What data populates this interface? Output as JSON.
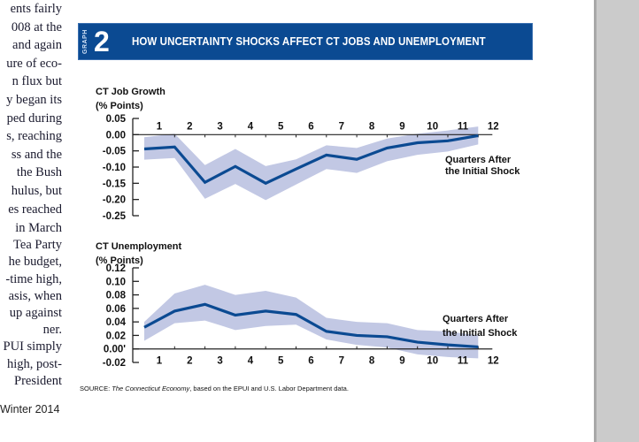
{
  "body_text": {
    "lines": [
      "ents fairly",
      "008 at the",
      "and again",
      "ure of eco-",
      "n flux but",
      "y began its",
      "ped during",
      "s, reaching",
      "ss and the",
      "the Bush",
      "hulus, but",
      "es reached",
      "",
      "in March",
      "Tea Party",
      "he budget,",
      "-time high,",
      "asis, when",
      "up against",
      "ner.",
      "PUI simply",
      "high, post-",
      "President"
    ],
    "footer": "Winter 2014"
  },
  "graph_header": {
    "tag": "GRAPH",
    "number": "2",
    "title": "HOW UNCERTAINTY SHOCKS AFFECT CT JOBS AND UNEMPLOYMENT",
    "color": "#0b4a92"
  },
  "source": {
    "prefix": "SOURCE: ",
    "italic": "The Connecticut Economy",
    "suffix": ", based on the EPUI and U.S. Labor Department data."
  },
  "chart_data": [
    {
      "type": "area",
      "title": "CT Job Growth",
      "ylabel": "(% Points)",
      "xlabel": "Quarters After the Initial Shock",
      "x": [
        1,
        2,
        3,
        4,
        5,
        6,
        7,
        8,
        9,
        10,
        11,
        12
      ],
      "x_tick_labels": [
        "1",
        "2",
        "3",
        "4",
        "5",
        "6",
        "7",
        "8",
        "9",
        "10",
        "11",
        "12"
      ],
      "ylim": [
        -0.25,
        0.05
      ],
      "y_ticks": [
        0.05,
        0.0,
        -0.05,
        -0.1,
        -0.15,
        -0.2,
        -0.25
      ],
      "y_tick_labels": [
        "0.05",
        "0.00",
        "-0.05",
        "-0.10",
        "-0.15",
        "-0.20",
        "-0.25"
      ],
      "series": [
        {
          "name": "estimate",
          "values": [
            -0.044,
            -0.038,
            -0.147,
            -0.098,
            -0.15,
            -0.106,
            -0.063,
            -0.076,
            -0.041,
            -0.025,
            -0.019,
            -0.003
          ]
        },
        {
          "name": "upper_band",
          "values": [
            -0.008,
            0.003,
            -0.094,
            -0.044,
            -0.097,
            -0.076,
            -0.033,
            -0.041,
            -0.012,
            0.003,
            0.013,
            0.025
          ]
        },
        {
          "name": "lower_band",
          "values": [
            -0.077,
            -0.072,
            -0.198,
            -0.152,
            -0.202,
            -0.154,
            -0.106,
            -0.118,
            -0.082,
            -0.062,
            -0.052,
            -0.03
          ]
        }
      ],
      "colors": {
        "line": "#0b4a92",
        "band": "#c2c8e4"
      },
      "grid": false,
      "annotation": [
        "Quarters After",
        "the Initial Shock"
      ]
    },
    {
      "type": "area",
      "title": "CT Unemployment",
      "ylabel": "(% Points)",
      "xlabel": "Quarters After the Initial Shock",
      "x": [
        1,
        2,
        3,
        4,
        5,
        6,
        7,
        8,
        9,
        10,
        11,
        12
      ],
      "x_tick_labels": [
        "1",
        "2",
        "3",
        "4",
        "5",
        "6",
        "7",
        "8",
        "9",
        "10",
        "11",
        "12"
      ],
      "ylim": [
        -0.02,
        0.12
      ],
      "y_ticks": [
        0.12,
        0.1,
        0.08,
        0.06,
        0.04,
        0.02,
        0.0,
        -0.02
      ],
      "y_tick_labels": [
        "0.12",
        "0.10",
        "0.08",
        "0.06",
        "0.04",
        "0.02",
        "0.00'",
        "-0.02"
      ],
      "series": [
        {
          "name": "estimate",
          "values": [
            0.032,
            0.056,
            0.066,
            0.05,
            0.056,
            0.051,
            0.026,
            0.02,
            0.018,
            0.01,
            0.006,
            0.003
          ]
        },
        {
          "name": "upper_band",
          "values": [
            0.04,
            0.082,
            0.095,
            0.08,
            0.086,
            0.076,
            0.046,
            0.04,
            0.038,
            0.028,
            0.026,
            0.02
          ]
        },
        {
          "name": "lower_band",
          "values": [
            0.012,
            0.038,
            0.042,
            0.028,
            0.034,
            0.036,
            0.014,
            0.006,
            0.002,
            -0.008,
            -0.012,
            -0.014
          ]
        }
      ],
      "colors": {
        "line": "#0b4a92",
        "band": "#c2c8e4"
      },
      "grid": false,
      "annotation": [
        "Quarters After",
        "the Initial Shock"
      ]
    }
  ]
}
